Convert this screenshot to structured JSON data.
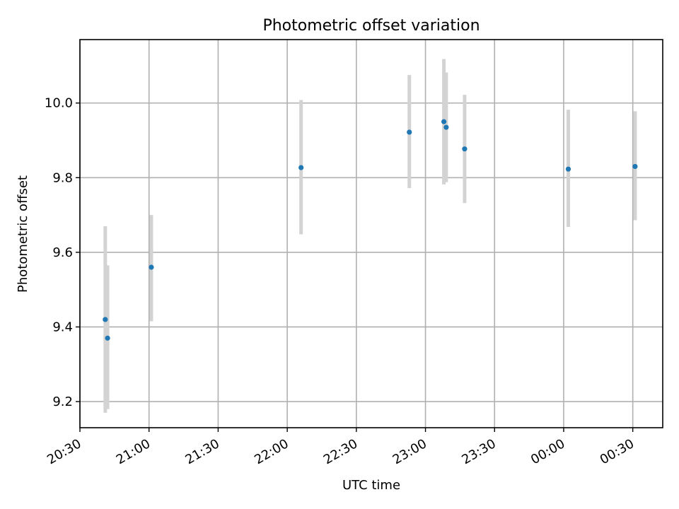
{
  "chart_data": {
    "type": "scatter",
    "title": "Photometric offset variation",
    "xlabel": "UTC time",
    "ylabel": "Photometric offset",
    "grid": true,
    "x_tick_labels": [
      "20:30",
      "21:00",
      "21:30",
      "22:00",
      "22:30",
      "23:00",
      "23:30",
      "00:00",
      "00:30"
    ],
    "x_ticks": [
      "20:30",
      "21:00",
      "21:30",
      "22:00",
      "22:30",
      "23:00",
      "23:30",
      "00:00",
      "00:30"
    ],
    "x_range": [
      "20:30",
      "00:43"
    ],
    "y_ticks": [
      9.2,
      9.4,
      9.6,
      9.8,
      10.0
    ],
    "y_tick_labels": [
      "9.2",
      "9.4",
      "9.6",
      "9.8",
      "10.0"
    ],
    "ylim": [
      9.13,
      10.17
    ],
    "error_bar_color": "#d3d3d3",
    "point_color": "#1f77b4",
    "points": [
      {
        "time": "20:41",
        "y": 9.42,
        "ymin": 9.17,
        "ymax": 9.67
      },
      {
        "time": "20:42",
        "y": 9.37,
        "ymin": 9.18,
        "ymax": 9.565
      },
      {
        "time": "21:01",
        "y": 9.56,
        "ymin": 9.415,
        "ymax": 9.7
      },
      {
        "time": "22:06",
        "y": 9.827,
        "ymin": 9.648,
        "ymax": 10.008
      },
      {
        "time": "22:53",
        "y": 9.922,
        "ymin": 9.772,
        "ymax": 10.075
      },
      {
        "time": "23:08",
        "y": 9.95,
        "ymin": 9.782,
        "ymax": 10.118
      },
      {
        "time": "23:09",
        "y": 9.935,
        "ymin": 9.788,
        "ymax": 10.082
      },
      {
        "time": "23:17",
        "y": 9.877,
        "ymin": 9.732,
        "ymax": 10.022
      },
      {
        "time": "00:02",
        "y": 9.823,
        "ymin": 9.668,
        "ymax": 9.982
      },
      {
        "time": "00:31",
        "y": 9.83,
        "ymin": 9.686,
        "ymax": 9.978
      }
    ]
  }
}
